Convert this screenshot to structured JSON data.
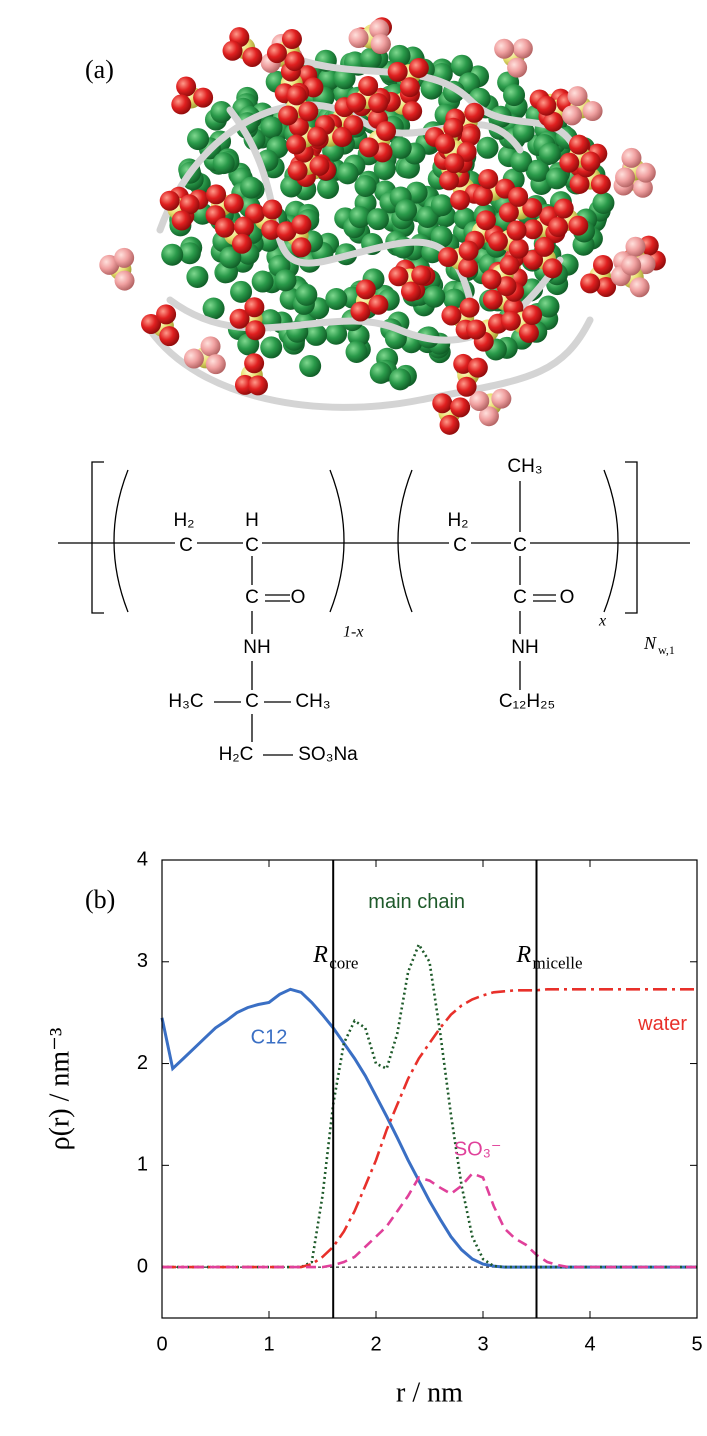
{
  "figure": {
    "panel_a_label": "(a)",
    "panel_b_label": "(b)",
    "structure": {
      "unit1": {
        "ch2_h": "H₂",
        "ch2_c": "C",
        "ch_h": "H",
        "ch_c": "C",
        "carbonyl_c": "C",
        "carbonyl_o": "O",
        "nh": "NH",
        "left_methyl": "H₃C",
        "quat_c": "C",
        "right_methyl": "CH₃",
        "ch2": "H₂C",
        "sulfonate": "SO₃Na",
        "fraction": "1-x"
      },
      "unit2": {
        "methyl": "CH₃",
        "ch2_h": "H₂",
        "ch2_c": "C",
        "quat_c": "C",
        "carbonyl_c": "C",
        "carbonyl_o": "O",
        "nh": "NH",
        "alkyl": "C₁₂H₂₅",
        "fraction": "x"
      },
      "degree_symbol": "N",
      "degree_subscript": "w,1"
    }
  },
  "chart_data": {
    "type": "line",
    "xlabel": "r / nm",
    "ylabel": "ρ(r) / nm⁻³",
    "xlim": [
      0,
      5
    ],
    "ylim": [
      -0.5,
      4
    ],
    "xticks": [
      0,
      1,
      2,
      3,
      4,
      5
    ],
    "yticks": [
      0,
      1,
      2,
      3,
      4
    ],
    "x": [
      0,
      0.1,
      0.2,
      0.3,
      0.4,
      0.5,
      0.6,
      0.7,
      0.8,
      0.9,
      1,
      1.1,
      1.2,
      1.3,
      1.4,
      1.5,
      1.6,
      1.7,
      1.8,
      1.9,
      2,
      2.1,
      2.2,
      2.3,
      2.4,
      2.5,
      2.6,
      2.7,
      2.8,
      2.9,
      3,
      3.1,
      3.2,
      3.3,
      3.4,
      3.5,
      3.6,
      3.7,
      3.8,
      3.9,
      4,
      4.1,
      4.2,
      4.3,
      4.4,
      4.5,
      4.6,
      4.7,
      4.8,
      4.9,
      5
    ],
    "series": [
      {
        "name": "C12",
        "color": "#3a6fc4",
        "style": "solid",
        "values": [
          2.45,
          1.95,
          2.05,
          2.15,
          2.25,
          2.35,
          2.42,
          2.5,
          2.55,
          2.58,
          2.6,
          2.68,
          2.73,
          2.7,
          2.6,
          2.48,
          2.35,
          2.2,
          2.05,
          1.88,
          1.68,
          1.48,
          1.27,
          1.05,
          0.85,
          0.65,
          0.47,
          0.3,
          0.17,
          0.08,
          0.03,
          0.01,
          0,
          0,
          0,
          0,
          0,
          0,
          0,
          0,
          0,
          0,
          0,
          0,
          0,
          0,
          0,
          0,
          0,
          0,
          0
        ]
      },
      {
        "name": "main chain",
        "color": "#1e5a2a",
        "style": "dotted",
        "values": [
          0,
          0,
          0,
          0,
          0,
          0,
          0,
          0,
          0,
          0,
          0,
          0,
          0,
          0,
          0.05,
          0.7,
          1.6,
          2.2,
          2.42,
          2.35,
          2.0,
          1.95,
          2.3,
          2.9,
          3.17,
          3.0,
          2.3,
          1.5,
          0.8,
          0.3,
          0.08,
          0.01,
          0,
          0,
          0,
          0,
          0,
          0,
          0,
          0,
          0,
          0,
          0,
          0,
          0,
          0,
          0,
          0,
          0,
          0,
          0
        ]
      },
      {
        "name": "water",
        "color": "#e8302a",
        "style": "dashdot",
        "values": [
          0,
          0,
          0,
          0,
          0,
          0,
          0,
          0,
          0,
          0,
          0,
          0,
          0,
          0,
          0.03,
          0.1,
          0.2,
          0.35,
          0.55,
          0.8,
          1.05,
          1.35,
          1.6,
          1.85,
          2.05,
          2.2,
          2.35,
          2.48,
          2.57,
          2.63,
          2.67,
          2.7,
          2.71,
          2.72,
          2.72,
          2.72,
          2.73,
          2.73,
          2.73,
          2.73,
          2.73,
          2.73,
          2.73,
          2.73,
          2.73,
          2.73,
          2.73,
          2.73,
          2.73,
          2.73,
          2.73
        ]
      },
      {
        "name": "SO₃⁻",
        "color": "#e0409a",
        "style": "dashed",
        "values": [
          0,
          0,
          0,
          0,
          0,
          0,
          0,
          0,
          0,
          0,
          0,
          0,
          0,
          0,
          0,
          0,
          0.02,
          0.05,
          0.1,
          0.2,
          0.3,
          0.4,
          0.55,
          0.7,
          0.88,
          0.85,
          0.78,
          0.72,
          0.8,
          0.92,
          0.88,
          0.6,
          0.38,
          0.28,
          0.22,
          0.12,
          0.05,
          0.02,
          0,
          0,
          0,
          0,
          0,
          0,
          0,
          0,
          0,
          0,
          0,
          0,
          0
        ]
      }
    ],
    "vlines": [
      {
        "x": 1.6,
        "label": "R",
        "subscript": "core"
      },
      {
        "x": 3.5,
        "label": "R",
        "subscript": "micelle"
      }
    ]
  }
}
